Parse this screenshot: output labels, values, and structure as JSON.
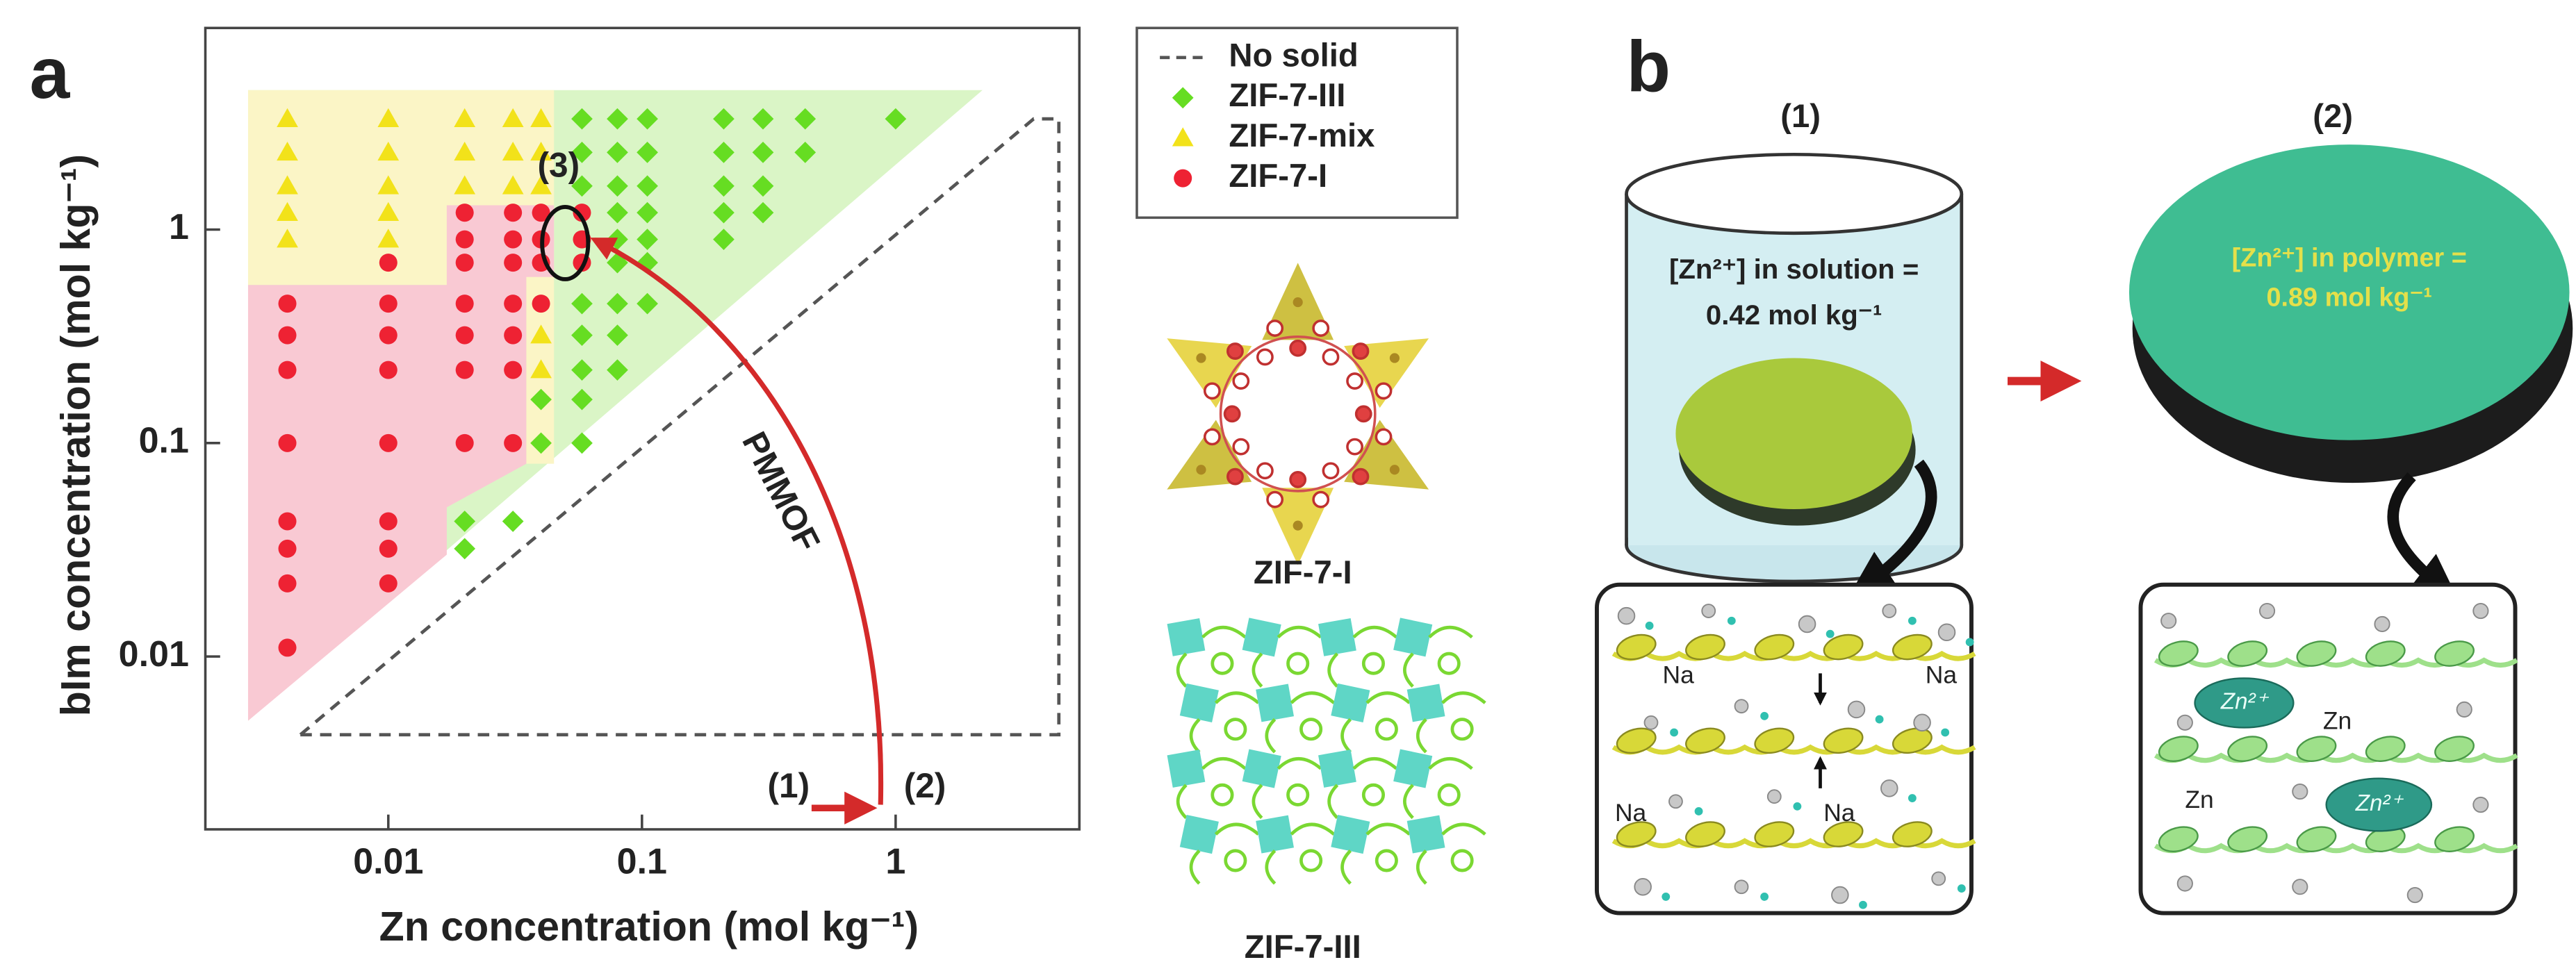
{
  "chart_data": {
    "type": "scatter",
    "panel": "a",
    "x_label": "Zn concentration (mol kg⁻¹)",
    "y_label": "bIm concentration (mol kg⁻¹)",
    "xlog": true,
    "ylog": true,
    "xlim": [
      0.0019,
      5.3
    ],
    "ylim": [
      0.00155,
      8.8
    ],
    "xticks": [
      0.01,
      0.1,
      1
    ],
    "yticks": [
      0.01,
      0.1,
      1
    ],
    "legend": "right",
    "annotations": [
      "(1)",
      "(2)",
      "(3)",
      "PMMOF"
    ],
    "series": [
      {
        "name": "No solid",
        "marker": "dashed",
        "color": "#555555",
        "region": {
          "x": [
            0.0045,
            4.4,
            4.4,
            3.5
          ],
          "y": [
            0.0043,
            0.0043,
            3.3,
            3.3
          ]
        }
      },
      {
        "name": "ZIF-7-III",
        "marker": "diamond",
        "color": "#66dd22",
        "region_color": "#daf5c6",
        "region": {
          "x": [
            0.0028,
            2.2,
            0.0028
          ],
          "y": [
            4.5,
            4.5,
            0.005
          ]
        },
        "x": [
          0.02,
          0.02,
          0.031,
          0.04,
          0.04,
          0.058,
          0.058,
          0.058,
          0.058,
          0.058,
          0.058,
          0.058,
          0.058,
          0.08,
          0.08,
          0.08,
          0.08,
          0.08,
          0.08,
          0.08,
          0.08,
          0.08,
          0.105,
          0.105,
          0.105,
          0.105,
          0.105,
          0.105,
          0.105,
          0.21,
          0.21,
          0.21,
          0.21,
          0.21,
          0.3,
          0.3,
          0.3,
          0.3,
          0.44,
          0.44,
          1.0
        ],
        "y": [
          0.043,
          0.032,
          0.043,
          0.16,
          0.1,
          3.3,
          2.3,
          1.6,
          0.45,
          0.32,
          0.22,
          0.16,
          0.1,
          3.3,
          2.3,
          1.6,
          1.2,
          0.9,
          0.7,
          0.45,
          0.32,
          0.22,
          3.3,
          2.3,
          1.6,
          1.2,
          0.9,
          0.7,
          0.45,
          3.3,
          2.3,
          1.6,
          1.2,
          0.9,
          3.3,
          2.3,
          1.6,
          1.2,
          3.3,
          2.3,
          3.3
        ]
      },
      {
        "name": "ZIF-7-mix",
        "marker": "triangle",
        "color": "#f2e21a",
        "region_color": "#fbf5c6",
        "region": {
          "x": [
            0.0028,
            0.045,
            0.045,
            0.035,
            0.035,
            0.0028
          ],
          "y": [
            4.5,
            4.5,
            0.08,
            0.08,
            0.55,
            0.55
          ]
        },
        "x": [
          0.004,
          0.004,
          0.004,
          0.004,
          0.004,
          0.01,
          0.01,
          0.01,
          0.01,
          0.01,
          0.02,
          0.02,
          0.02,
          0.031,
          0.031,
          0.031,
          0.04,
          0.04,
          0.04,
          0.04,
          0.04
        ],
        "y": [
          3.3,
          2.3,
          1.6,
          1.2,
          0.9,
          3.3,
          2.3,
          1.6,
          1.2,
          0.9,
          3.3,
          2.3,
          1.6,
          3.3,
          2.3,
          1.6,
          3.3,
          2.3,
          1.6,
          0.32,
          0.22
        ]
      },
      {
        "name": "ZIF-7-I",
        "marker": "circle",
        "color": "#ee2233",
        "region_color": "#f9c9d3",
        "region": {
          "x": [
            0.0028,
            0.017,
            0.017,
            0.045,
            0.045,
            0.035,
            0.035,
            0.017,
            0.017,
            0.0028
          ],
          "y": [
            0.55,
            0.55,
            1.3,
            1.3,
            0.6,
            0.6,
            0.08,
            0.05,
            0.03,
            0.005
          ]
        },
        "x": [
          0.004,
          0.004,
          0.004,
          0.004,
          0.004,
          0.004,
          0.004,
          0.004,
          0.01,
          0.01,
          0.01,
          0.01,
          0.01,
          0.01,
          0.01,
          0.01,
          0.02,
          0.02,
          0.02,
          0.02,
          0.02,
          0.02,
          0.02,
          0.031,
          0.031,
          0.031,
          0.031,
          0.031,
          0.031,
          0.031,
          0.04,
          0.04,
          0.04,
          0.04,
          0.058,
          0.058,
          0.058
        ],
        "y": [
          0.45,
          0.32,
          0.22,
          0.1,
          0.043,
          0.032,
          0.022,
          0.011,
          0.7,
          0.45,
          0.32,
          0.22,
          0.1,
          0.043,
          0.032,
          0.022,
          1.2,
          0.9,
          0.7,
          0.45,
          0.32,
          0.22,
          0.1,
          1.2,
          0.9,
          0.7,
          0.45,
          0.32,
          0.22,
          0.1,
          1.2,
          0.9,
          0.7,
          0.45,
          1.2,
          0.9,
          0.7
        ]
      }
    ]
  },
  "structures": [
    "ZIF-7-I",
    "ZIF-7-III"
  ],
  "panel_b": {
    "label": "b",
    "step_1": {
      "label": "(1)",
      "text": [
        "[Zn²⁺] in solution =",
        "0.42 mol kg⁻¹"
      ],
      "ions": [
        "Na",
        "Na",
        "Na",
        "Na"
      ]
    },
    "step_2": {
      "label": "(2)",
      "text": [
        "[Zn²⁺] in polymer =",
        "0.89 mol kg⁻¹"
      ],
      "ions": [
        "Zn",
        "Zn"
      ],
      "clusters": [
        "Zn²⁺",
        "Zn²⁺"
      ]
    }
  }
}
